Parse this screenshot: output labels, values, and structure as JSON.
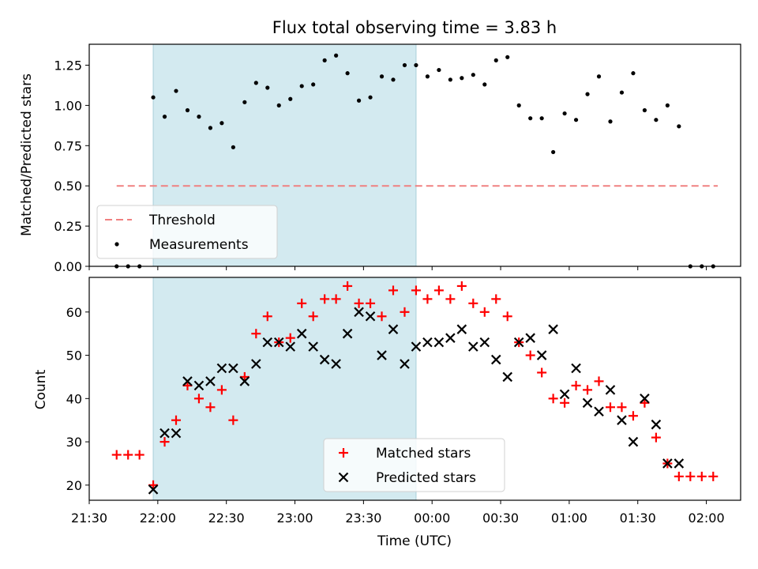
{
  "chart_data": [
    {
      "type": "scatter",
      "title": "Flux total observing time = 3.83 h",
      "ylabel": "Matched/Predicted stars",
      "xlabel": "",
      "xlim": [
        "21:30",
        "02:15"
      ],
      "ylim": [
        0,
        1.38
      ],
      "yticks": [
        "0.00",
        "0.25",
        "0.50",
        "0.75",
        "1.00",
        "1.25"
      ],
      "shaded_interval": [
        "21:58",
        "23:53"
      ],
      "shaded_color": "#d3eaf0",
      "threshold": {
        "name": "Threshold",
        "value": 0.5,
        "x_from": "21:42",
        "x_to": "02:05",
        "color": "#f08080"
      },
      "series": [
        {
          "name": "Measurements",
          "color": "#000000",
          "points": [
            [
              "21:42",
              0
            ],
            [
              "21:47",
              0
            ],
            [
              "21:52",
              0
            ],
            [
              "21:58",
              1.05
            ],
            [
              "22:03",
              0.93
            ],
            [
              "22:08",
              1.09
            ],
            [
              "22:13",
              0.97
            ],
            [
              "22:18",
              0.93
            ],
            [
              "22:23",
              0.86
            ],
            [
              "22:28",
              0.89
            ],
            [
              "22:33",
              0.74
            ],
            [
              "22:38",
              1.02
            ],
            [
              "22:43",
              1.14
            ],
            [
              "22:48",
              1.11
            ],
            [
              "22:53",
              1.0
            ],
            [
              "22:58",
              1.04
            ],
            [
              "23:03",
              1.12
            ],
            [
              "23:08",
              1.13
            ],
            [
              "23:13",
              1.28
            ],
            [
              "23:18",
              1.31
            ],
            [
              "23:23",
              1.2
            ],
            [
              "23:28",
              1.03
            ],
            [
              "23:33",
              1.05
            ],
            [
              "23:38",
              1.18
            ],
            [
              "23:43",
              1.16
            ],
            [
              "23:48",
              1.25
            ],
            [
              "23:53",
              1.25
            ],
            [
              "23:58",
              1.18
            ],
            [
              "00:03",
              1.22
            ],
            [
              "00:08",
              1.16
            ],
            [
              "00:13",
              1.17
            ],
            [
              "00:18",
              1.19
            ],
            [
              "00:23",
              1.13
            ],
            [
              "00:28",
              1.28
            ],
            [
              "00:33",
              1.3
            ],
            [
              "00:38",
              1.0
            ],
            [
              "00:43",
              0.92
            ],
            [
              "00:48",
              0.92
            ],
            [
              "00:53",
              0.71
            ],
            [
              "00:58",
              0.95
            ],
            [
              "01:03",
              0.91
            ],
            [
              "01:08",
              1.07
            ],
            [
              "01:13",
              1.18
            ],
            [
              "01:18",
              0.9
            ],
            [
              "01:23",
              1.08
            ],
            [
              "01:28",
              1.2
            ],
            [
              "01:33",
              0.97
            ],
            [
              "01:38",
              0.91
            ],
            [
              "01:43",
              1.0
            ],
            [
              "01:48",
              0.87
            ],
            [
              "01:53",
              0
            ],
            [
              "01:58",
              0
            ],
            [
              "02:03",
              0
            ]
          ]
        }
      ],
      "legend": {
        "placement": "lower-left"
      }
    },
    {
      "type": "scatter",
      "title": "",
      "xlabel": "Time (UTC)",
      "ylabel": "Count",
      "xlim": [
        "21:30",
        "02:15"
      ],
      "ylim": [
        16.5,
        68
      ],
      "yticks": [
        "20",
        "30",
        "40",
        "50",
        "60"
      ],
      "xticks": [
        "21:30",
        "22:00",
        "22:30",
        "23:00",
        "23:30",
        "00:00",
        "00:30",
        "01:00",
        "01:30",
        "02:00"
      ],
      "shaded_interval": [
        "21:58",
        "23:53"
      ],
      "shaded_color": "#d3eaf0",
      "series": [
        {
          "name": "Matched stars",
          "marker": "+",
          "color": "#ff0000",
          "points": [
            [
              "21:42",
              27
            ],
            [
              "21:47",
              27
            ],
            [
              "21:52",
              27
            ],
            [
              "21:58",
              20
            ],
            [
              "22:03",
              30
            ],
            [
              "22:08",
              35
            ],
            [
              "22:13",
              43
            ],
            [
              "22:18",
              40
            ],
            [
              "22:23",
              38
            ],
            [
              "22:28",
              42
            ],
            [
              "22:33",
              35
            ],
            [
              "22:38",
              45
            ],
            [
              "22:43",
              55
            ],
            [
              "22:48",
              59
            ],
            [
              "22:53",
              53
            ],
            [
              "22:58",
              54
            ],
            [
              "23:03",
              62
            ],
            [
              "23:08",
              59
            ],
            [
              "23:13",
              63
            ],
            [
              "23:18",
              63
            ],
            [
              "23:23",
              66
            ],
            [
              "23:28",
              62
            ],
            [
              "23:33",
              62
            ],
            [
              "23:38",
              59
            ],
            [
              "23:43",
              65
            ],
            [
              "23:48",
              60
            ],
            [
              "23:53",
              65
            ],
            [
              "23:58",
              63
            ],
            [
              "00:03",
              65
            ],
            [
              "00:08",
              63
            ],
            [
              "00:13",
              66
            ],
            [
              "00:18",
              62
            ],
            [
              "00:23",
              60
            ],
            [
              "00:28",
              63
            ],
            [
              "00:33",
              59
            ],
            [
              "00:38",
              53
            ],
            [
              "00:43",
              50
            ],
            [
              "00:48",
              46
            ],
            [
              "00:53",
              40
            ],
            [
              "00:58",
              39
            ],
            [
              "01:03",
              43
            ],
            [
              "01:08",
              42
            ],
            [
              "01:13",
              44
            ],
            [
              "01:18",
              38
            ],
            [
              "01:23",
              38
            ],
            [
              "01:28",
              36
            ],
            [
              "01:33",
              39
            ],
            [
              "01:38",
              31
            ],
            [
              "01:43",
              25
            ],
            [
              "01:48",
              22
            ],
            [
              "01:53",
              22
            ],
            [
              "01:58",
              22
            ],
            [
              "02:03",
              22
            ]
          ]
        },
        {
          "name": "Predicted stars",
          "marker": "x",
          "color": "#000000",
          "points": [
            [
              "21:58",
              19
            ],
            [
              "22:03",
              32
            ],
            [
              "22:08",
              32
            ],
            [
              "22:13",
              44
            ],
            [
              "22:18",
              43
            ],
            [
              "22:23",
              44
            ],
            [
              "22:28",
              47
            ],
            [
              "22:33",
              47
            ],
            [
              "22:38",
              44
            ],
            [
              "22:43",
              48
            ],
            [
              "22:48",
              53
            ],
            [
              "22:53",
              53
            ],
            [
              "22:58",
              52
            ],
            [
              "23:03",
              55
            ],
            [
              "23:08",
              52
            ],
            [
              "23:13",
              49
            ],
            [
              "23:18",
              48
            ],
            [
              "23:23",
              55
            ],
            [
              "23:28",
              60
            ],
            [
              "23:33",
              59
            ],
            [
              "23:38",
              50
            ],
            [
              "23:43",
              56
            ],
            [
              "23:48",
              48
            ],
            [
              "23:53",
              52
            ],
            [
              "23:58",
              53
            ],
            [
              "00:03",
              53
            ],
            [
              "00:08",
              54
            ],
            [
              "00:13",
              56
            ],
            [
              "00:18",
              52
            ],
            [
              "00:23",
              53
            ],
            [
              "00:28",
              49
            ],
            [
              "00:33",
              45
            ],
            [
              "00:38",
              53
            ],
            [
              "00:43",
              54
            ],
            [
              "00:48",
              50
            ],
            [
              "00:53",
              56
            ],
            [
              "00:58",
              41
            ],
            [
              "01:03",
              47
            ],
            [
              "01:08",
              39
            ],
            [
              "01:13",
              37
            ],
            [
              "01:18",
              42
            ],
            [
              "01:23",
              35
            ],
            [
              "01:28",
              30
            ],
            [
              "01:33",
              40
            ],
            [
              "01:38",
              34
            ],
            [
              "01:43",
              25
            ],
            [
              "01:48",
              25
            ]
          ]
        }
      ],
      "legend": {
        "placement": "lower-center"
      }
    }
  ]
}
